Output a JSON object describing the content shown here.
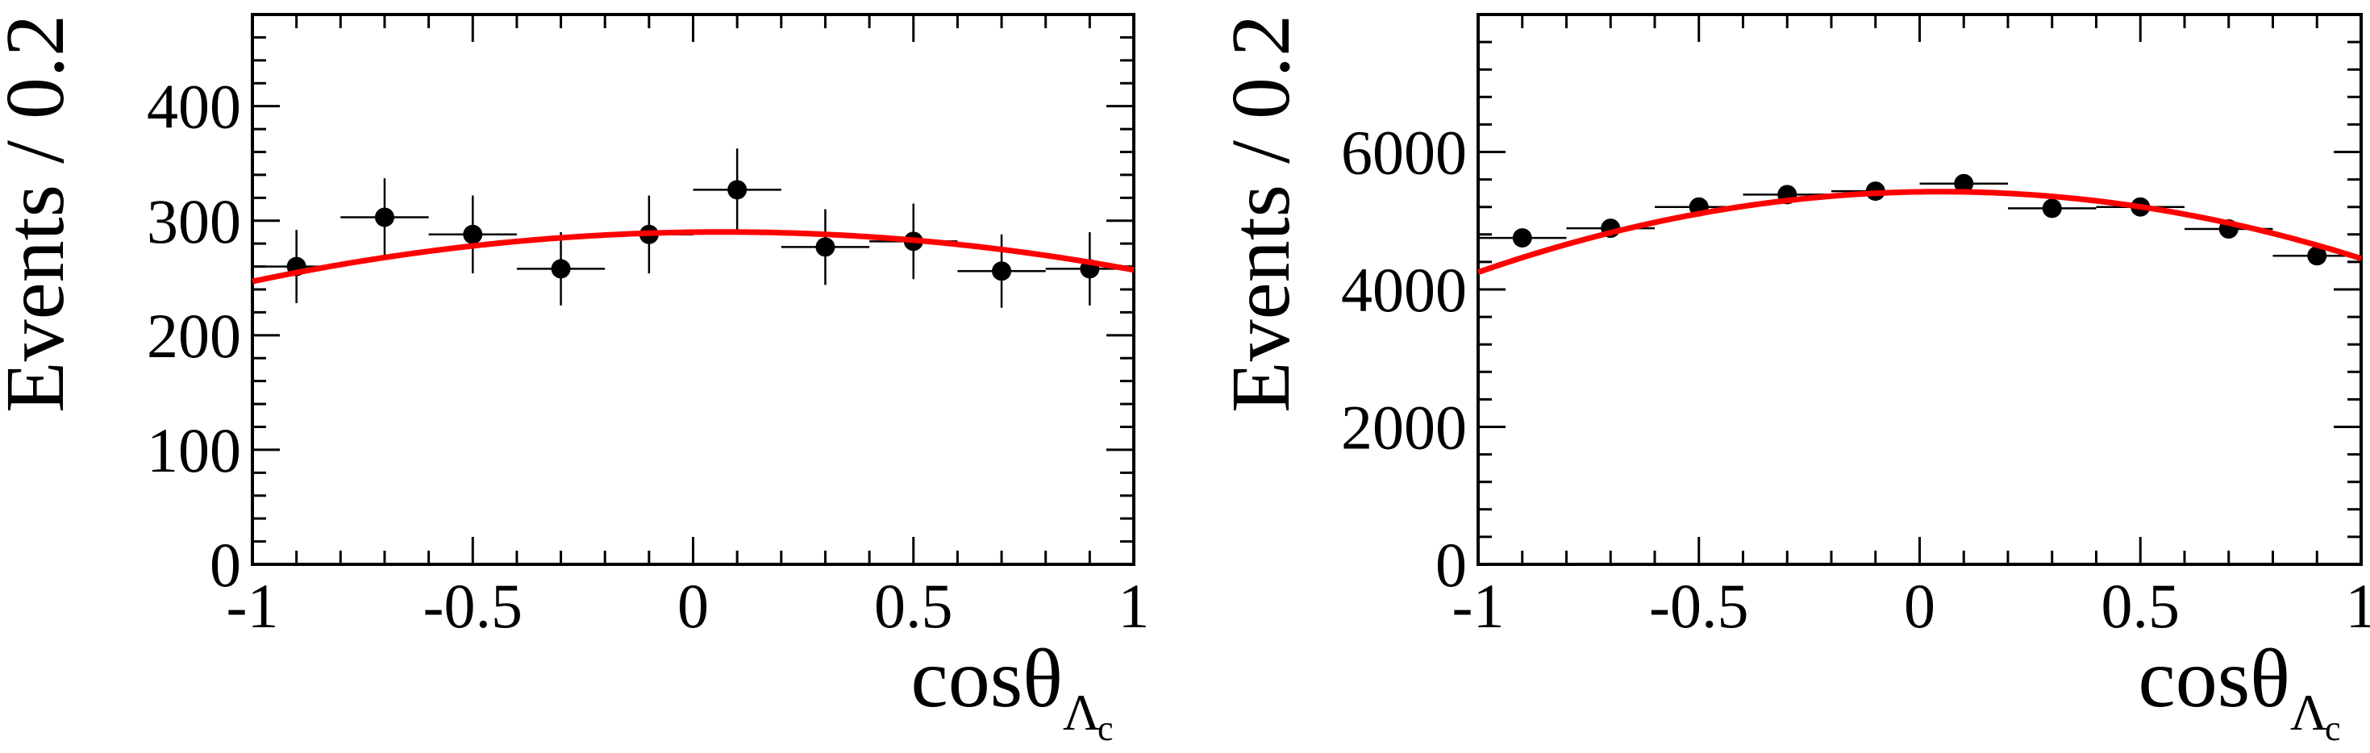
{
  "chart_data": [
    {
      "type": "scatter",
      "title": "",
      "xlabel": "cosθ",
      "xlabel_subscript": "Λ",
      "xlabel_subsubscript": "c",
      "ylabel": "Events / 0.2",
      "xlim": [
        -1,
        1
      ],
      "ylim": [
        0,
        480
      ],
      "xticks": [
        -1,
        -0.5,
        0,
        0.5,
        1
      ],
      "xtick_labels": [
        "-1",
        "-0.5",
        "0",
        "0.5",
        "1"
      ],
      "yticks": [
        0,
        100,
        200,
        300,
        400
      ],
      "ytick_labels": [
        "0",
        "100",
        "200",
        "300",
        "400"
      ],
      "x_minor_step": 0.1,
      "y_minor_step": 20,
      "x_bin_halfwidth": 0.1,
      "series": [
        {
          "name": "data",
          "x": [
            -0.9,
            -0.7,
            -0.5,
            -0.3,
            -0.1,
            0.1,
            0.3,
            0.5,
            0.7,
            0.9
          ],
          "y": [
            260,
            303,
            288,
            258,
            288,
            327,
            277,
            282,
            256,
            258
          ],
          "yerr": [
            32,
            34,
            34,
            32,
            34,
            36,
            33,
            33,
            32,
            32
          ]
        },
        {
          "name": "fit",
          "curve": "quadratic",
          "color": "#ff0000",
          "coefficients": [
            290,
            5,
            -38
          ]
        }
      ]
    },
    {
      "type": "scatter",
      "title": "",
      "xlabel": "cosθ",
      "xlabel_subscript": "Λ",
      "xlabel_subsubscript": "c",
      "ylabel": "Events / 0.2",
      "xlim": [
        -1,
        1
      ],
      "ylim": [
        0,
        8000
      ],
      "xticks": [
        -1,
        -0.5,
        0,
        0.5,
        1
      ],
      "xtick_labels": [
        "-1",
        "-0.5",
        "0",
        "0.5",
        "1"
      ],
      "yticks": [
        0,
        2000,
        4000,
        6000
      ],
      "ytick_labels": [
        "0",
        "2000",
        "4000",
        "6000"
      ],
      "x_minor_step": 0.1,
      "y_minor_step": 400,
      "x_bin_halfwidth": 0.1,
      "series": [
        {
          "name": "data",
          "x": [
            -0.9,
            -0.7,
            -0.5,
            -0.3,
            -0.1,
            0.1,
            0.3,
            0.5,
            0.7,
            0.9
          ],
          "y": [
            4750,
            4890,
            5200,
            5380,
            5430,
            5540,
            5180,
            5200,
            4880,
            4490
          ],
          "yerr": [
            100,
            110,
            110,
            120,
            120,
            120,
            110,
            110,
            110,
            100
          ]
        },
        {
          "name": "fit",
          "curve": "quadratic",
          "color": "#ff0000",
          "coefficients": [
            5420,
            100,
            -1070
          ]
        }
      ]
    }
  ]
}
